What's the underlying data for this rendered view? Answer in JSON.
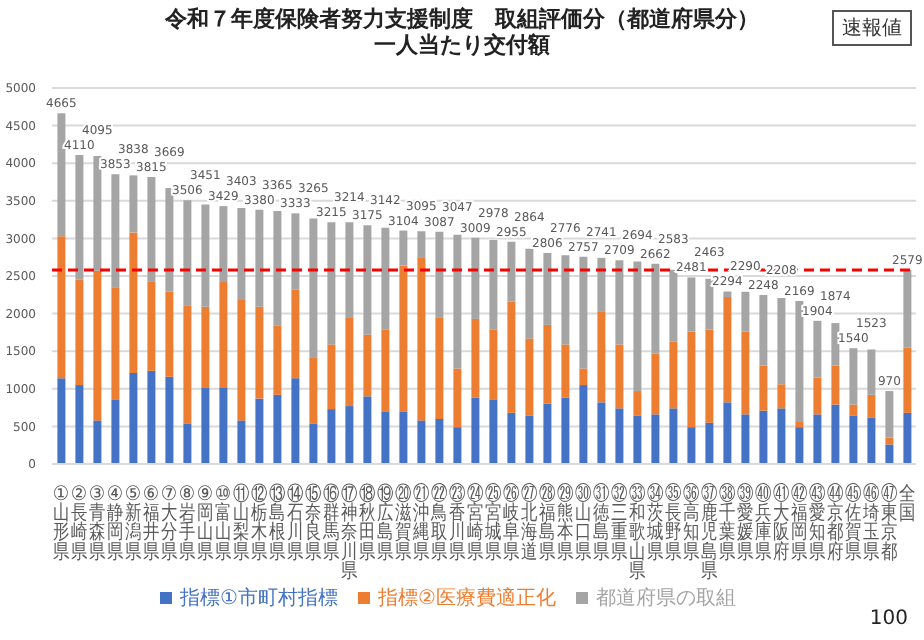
{
  "chart_data": {
    "type": "bar",
    "title": "令和７年度保険者努力支援制度　取組評価分（都道府県分）",
    "subtitle": "一人当たり交付額",
    "annotations": [
      "速報値",
      "100"
    ],
    "categories": [
      "①山形県",
      "②長崎県",
      "③青森県",
      "④静岡県",
      "⑤新潟県",
      "⑥福井県",
      "⑦大分県",
      "⑧岩手県",
      "⑨岡山県",
      "⑩富山県",
      "⑪山梨県",
      "⑫栃木県",
      "⑬島根県",
      "⑭石川県",
      "⑮奈良県",
      "⑯群馬県",
      "⑰神奈川県",
      "⑱秋田県",
      "⑲広島県",
      "⑳滋賀県",
      "㉑沖縄県",
      "㉒鳥取県",
      "㉓香川県",
      "㉔宮崎県",
      "㉕宮城県",
      "㉖岐阜県",
      "㉗北海道",
      "㉘福島県",
      "㉙熊本県",
      "㉚山口県",
      "㉛徳島県",
      "㉜三重県",
      "㉝和歌山県",
      "㉞茨城県",
      "㉟長野県",
      "㊱高知県",
      "㊲鹿児島県",
      "㊳千葉県",
      "㊴愛媛県",
      "㊵兵庫県",
      "㊶大阪府",
      "㊷福岡県",
      "㊸愛知県",
      "㊹京都府",
      "㊺佐賀県",
      "㊻埼玉県",
      "㊼東京都",
      "全国"
    ],
    "stacked": true,
    "series": [
      {
        "name": "指標①市町村指標",
        "color": "#4472c4",
        "values": [
          1140,
          1050,
          580,
          860,
          1210,
          1240,
          1160,
          540,
          1010,
          1020,
          580,
          870,
          920,
          1140,
          540,
          730,
          770,
          900,
          700,
          700,
          580,
          600,
          490,
          880,
          860,
          680,
          640,
          800,
          880,
          1050,
          820,
          740,
          640,
          660,
          740,
          490,
          550,
          820,
          660,
          710,
          740,
          490,
          660,
          790,
          640,
          620,
          260,
          680
        ]
      },
      {
        "name": "指標②医療費適正化",
        "color": "#ed7d31",
        "values": [
          1890,
          1400,
          1990,
          1490,
          1870,
          1190,
          1130,
          1570,
          1080,
          1400,
          1600,
          1220,
          920,
          1180,
          880,
          860,
          1170,
          820,
          1090,
          1940,
          2160,
          1350,
          780,
          1050,
          930,
          1480,
          1030,
          1050,
          710,
          220,
          1210,
          850,
          330,
          810,
          890,
          1270,
          1240,
          1400,
          1100,
          600,
          320,
          70,
          490,
          520,
          150,
          300,
          90,
          870
        ]
      },
      {
        "name": "都道府県の取組",
        "color": "#a5a5a5",
        "values": [
          1635,
          1660,
          1525,
          1503,
          758,
          1385,
          1379,
          1396,
          1361,
          1009,
          1223,
          1290,
          1525,
          1013,
          1845,
          1625,
          1274,
          1455,
          1352,
          464,
          355,
          1137,
          1777,
          1079,
          1188,
          795,
          1194,
          956,
          1186,
          1487,
          711,
          1119,
          1724,
          1192,
          953,
          721,
          673,
          74,
          530,
          938,
          1148,
          1609,
          754,
          564,
          750,
          603,
          620,
          1029
        ]
      }
    ],
    "totals": [
      "4665",
      "4110",
      "4095",
      "3853",
      "3838",
      "3815",
      "3669",
      "3506",
      "3451",
      "3429",
      "3403",
      "3380",
      "3365",
      "3333",
      "3265",
      "3215",
      "3214",
      "3175",
      "3142",
      "3104",
      "3095",
      "3087",
      "3047",
      "3009",
      "2978",
      "2955",
      "2864",
      "2806",
      "2776",
      "2757",
      "2741",
      "2709",
      "2694",
      "2662",
      "2583",
      "2481",
      "2463",
      "2294",
      "2290",
      "2248",
      "2208",
      "2169",
      "1904",
      "1874",
      "1540",
      "1523",
      "970",
      "2579"
    ],
    "ylim": [
      0,
      5000
    ],
    "yticks": [
      0,
      500,
      1000,
      1500,
      2000,
      2500,
      3000,
      3500,
      4000,
      4500,
      5000
    ],
    "grid": "y",
    "legend": "bottom",
    "ref_lines": [
      {
        "axis": "y",
        "value": 2579,
        "color": "#ff0000",
        "line_style": "dashed"
      }
    ]
  }
}
